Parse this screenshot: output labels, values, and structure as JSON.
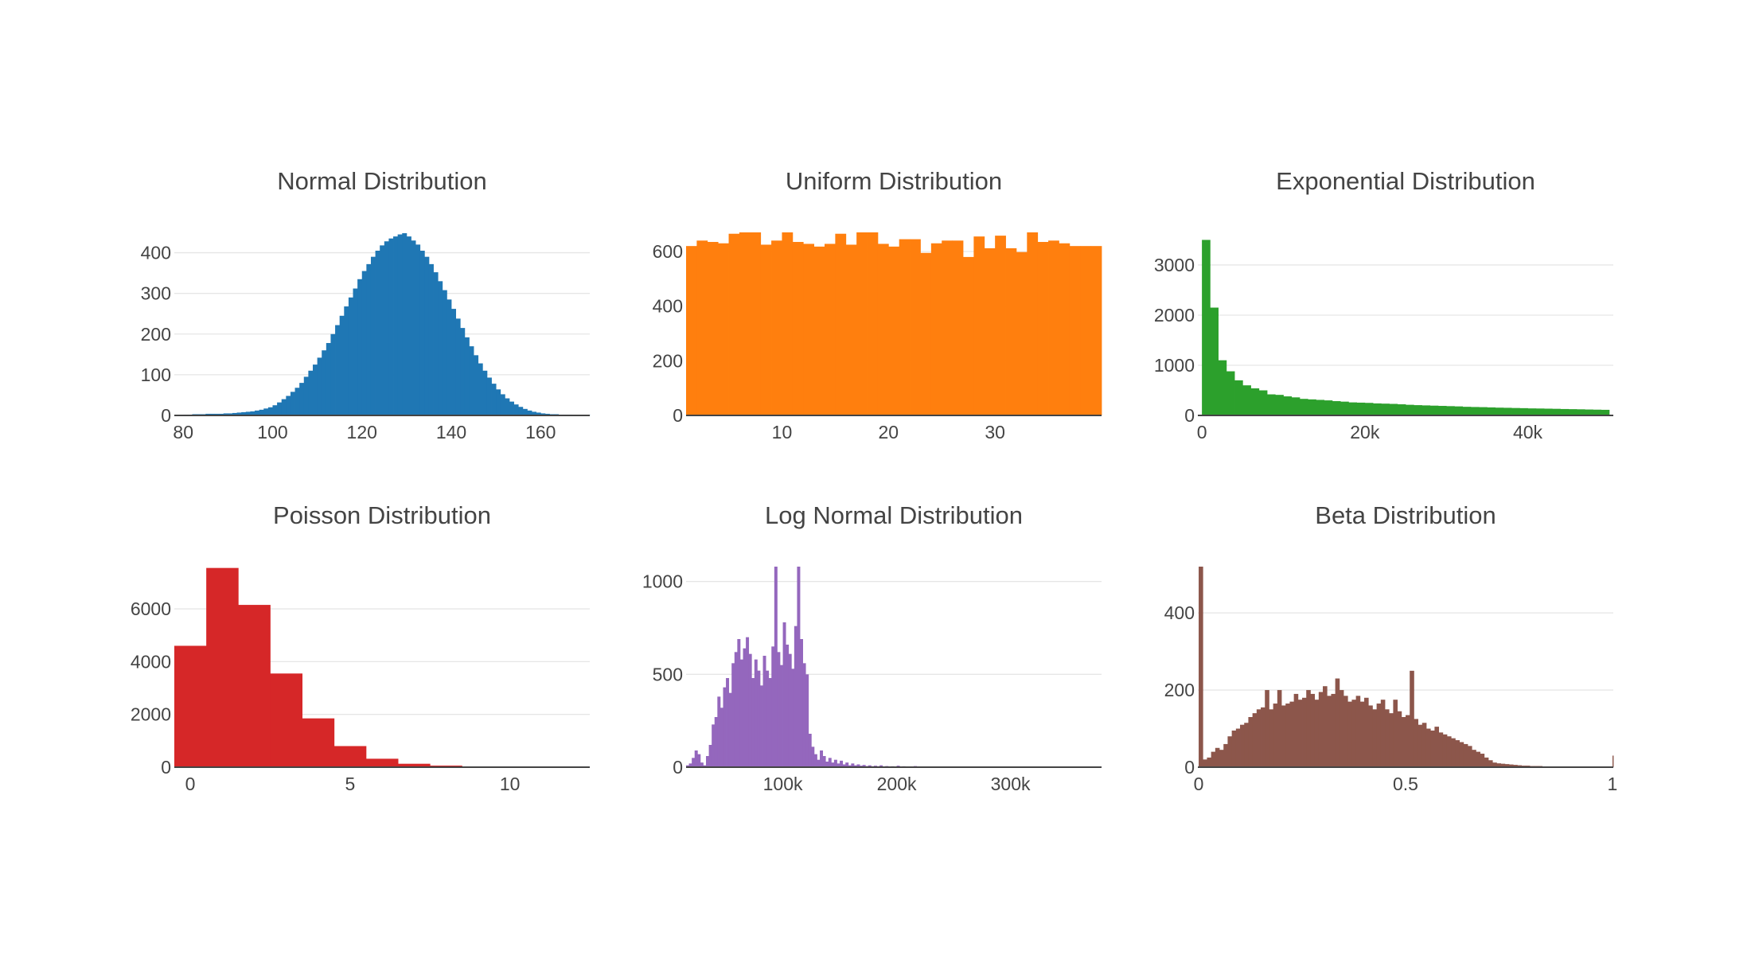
{
  "chart_data": [
    {
      "type": "histogram",
      "title": "Normal Distribution",
      "color": "#1f77b4",
      "xlim": [
        78,
        171
      ],
      "ylim": [
        0,
        450
      ],
      "xticks": [
        {
          "v": 80,
          "label": "80"
        },
        {
          "v": 100,
          "label": "100"
        },
        {
          "v": 120,
          "label": "120"
        },
        {
          "v": 140,
          "label": "140"
        },
        {
          "v": 160,
          "label": "160"
        }
      ],
      "yticks": [
        {
          "v": 0,
          "label": "0"
        },
        {
          "v": 100,
          "label": "100"
        },
        {
          "v": 200,
          "label": "200"
        },
        {
          "v": 300,
          "label": "300"
        },
        {
          "v": 400,
          "label": "400"
        }
      ],
      "bin_start": 80,
      "bin_width": 1,
      "values": [
        2,
        2,
        3,
        3,
        3,
        4,
        4,
        4,
        4,
        5,
        5,
        6,
        7,
        8,
        9,
        10,
        12,
        14,
        17,
        20,
        25,
        32,
        40,
        48,
        58,
        68,
        80,
        95,
        110,
        125,
        142,
        160,
        178,
        200,
        222,
        245,
        268,
        290,
        312,
        335,
        355,
        372,
        390,
        405,
        418,
        428,
        435,
        440,
        445,
        448,
        440,
        430,
        420,
        405,
        390,
        372,
        352,
        330,
        308,
        285,
        262,
        238,
        215,
        192,
        170,
        148,
        128,
        110,
        93,
        78,
        64,
        52,
        42,
        34,
        27,
        21,
        16,
        12,
        9,
        7,
        5,
        4,
        3,
        3,
        2,
        2,
        2,
        1,
        1,
        1,
        1
      ]
    },
    {
      "type": "histogram",
      "title": "Uniform Distribution",
      "color": "#ff7f0e",
      "xlim": [
        1,
        40
      ],
      "ylim": [
        0,
        670
      ],
      "xticks": [
        {
          "v": 10,
          "label": "10"
        },
        {
          "v": 20,
          "label": "20"
        },
        {
          "v": 30,
          "label": "30"
        }
      ],
      "yticks": [
        {
          "v": 0,
          "label": "0"
        },
        {
          "v": 200,
          "label": "200"
        },
        {
          "v": 400,
          "label": "400"
        },
        {
          "v": 600,
          "label": "600"
        }
      ],
      "bin_start": 1,
      "bin_width": 1,
      "values": [
        620,
        640,
        635,
        630,
        665,
        695,
        680,
        625,
        640,
        690,
        635,
        628,
        618,
        628,
        665,
        625,
        695,
        690,
        628,
        618,
        645,
        645,
        595,
        630,
        640,
        640,
        580,
        655,
        612,
        658,
        612,
        598,
        670,
        635,
        640,
        630,
        620,
        620,
        620
      ]
    },
    {
      "type": "histogram",
      "title": "Exponential Distribution",
      "color": "#2ca02c",
      "xlim": [
        -500,
        50500
      ],
      "ylim": [
        0,
        3650
      ],
      "xticks": [
        {
          "v": 0,
          "label": "0"
        },
        {
          "v": 20000,
          "label": "20k"
        },
        {
          "v": 40000,
          "label": "40k"
        }
      ],
      "yticks": [
        {
          "v": 0,
          "label": "0"
        },
        {
          "v": 1000,
          "label": "1000"
        },
        {
          "v": 2000,
          "label": "2000"
        },
        {
          "v": 3000,
          "label": "3000"
        }
      ],
      "bin_start": 0,
      "bin_width": 1000,
      "values": [
        3500,
        2150,
        1100,
        880,
        700,
        600,
        540,
        500,
        420,
        410,
        380,
        360,
        330,
        320,
        310,
        300,
        285,
        275,
        260,
        255,
        250,
        240,
        235,
        230,
        222,
        212,
        205,
        200,
        195,
        190,
        185,
        180,
        172,
        168,
        165,
        160,
        155,
        152,
        148,
        145,
        140,
        138,
        135,
        132,
        128,
        125,
        122,
        118,
        115,
        112
      ]
    },
    {
      "type": "histogram",
      "title": "Poisson Distribution",
      "color": "#d62728",
      "xlim": [
        -0.5,
        12.5
      ],
      "ylim": [
        0,
        7600
      ],
      "xticks": [
        {
          "v": 0,
          "label": "0"
        },
        {
          "v": 5,
          "label": "5"
        },
        {
          "v": 10,
          "label": "10"
        }
      ],
      "yticks": [
        {
          "v": 0,
          "label": "0"
        },
        {
          "v": 2000,
          "label": "2000"
        },
        {
          "v": 4000,
          "label": "4000"
        },
        {
          "v": 6000,
          "label": "6000"
        }
      ],
      "bin_start": -0.5,
      "bin_width": 1,
      "values": [
        4600,
        7550,
        6150,
        3550,
        1850,
        800,
        320,
        130,
        60,
        20,
        8,
        3,
        1
      ]
    },
    {
      "type": "histogram",
      "title": "Log Normal Distribution",
      "color": "#9467bd",
      "xlim": [
        15000,
        380000
      ],
      "ylim": [
        0,
        1080
      ],
      "xticks": [
        {
          "v": 100000,
          "label": "100k"
        },
        {
          "v": 200000,
          "label": "200k"
        },
        {
          "v": 300000,
          "label": "300k"
        }
      ],
      "yticks": [
        {
          "v": 0,
          "label": "0"
        },
        {
          "v": 500,
          "label": "500"
        },
        {
          "v": 1000,
          "label": "1000"
        }
      ],
      "bin_start": 15000,
      "bin_width": 2500,
      "values": [
        10,
        20,
        50,
        90,
        70,
        25,
        10,
        60,
        120,
        230,
        270,
        380,
        320,
        430,
        480,
        400,
        560,
        620,
        690,
        580,
        640,
        700,
        610,
        480,
        580,
        520,
        440,
        600,
        520,
        480,
        650,
        1080,
        620,
        550,
        780,
        660,
        610,
        530,
        760,
        1080,
        690,
        560,
        500,
        180,
        110,
        70,
        40,
        90,
        60,
        30,
        50,
        25,
        40,
        20,
        35,
        15,
        25,
        10,
        20,
        10,
        15,
        8,
        12,
        6,
        10,
        5,
        8,
        5,
        10,
        4,
        6,
        3,
        5,
        3,
        8,
        3,
        5,
        2,
        4,
        2,
        6,
        2,
        3,
        2,
        4,
        2,
        3,
        2,
        4,
        2,
        3,
        1,
        3,
        2,
        2,
        1,
        3,
        2,
        2,
        1,
        3,
        1,
        2,
        1,
        2,
        1,
        2,
        1,
        3,
        1,
        2,
        1,
        2,
        1,
        2,
        1,
        2,
        1,
        2,
        1,
        2,
        1,
        2,
        1,
        2,
        1,
        2,
        1,
        2,
        1,
        2,
        1,
        2,
        1,
        2,
        1,
        2,
        1,
        2,
        1,
        2,
        1,
        2,
        1,
        2,
        1
      ]
    },
    {
      "type": "histogram",
      "title": "Beta Distribution",
      "color": "#8c564b",
      "xlim": [
        -0.002,
        1.002
      ],
      "ylim": [
        0,
        520
      ],
      "xticks": [
        {
          "v": 0,
          "label": "0"
        },
        {
          "v": 0.5,
          "label": "0.5"
        },
        {
          "v": 1,
          "label": "1"
        }
      ],
      "yticks": [
        {
          "v": 0,
          "label": "0"
        },
        {
          "v": 200,
          "label": "200"
        },
        {
          "v": 400,
          "label": "400"
        }
      ],
      "bin_start": 0,
      "bin_width": 0.01,
      "values": [
        520,
        20,
        25,
        40,
        50,
        45,
        60,
        80,
        95,
        100,
        110,
        115,
        130,
        140,
        150,
        155,
        200,
        150,
        165,
        200,
        160,
        165,
        170,
        190,
        175,
        180,
        200,
        190,
        175,
        195,
        210,
        185,
        190,
        230,
        200,
        185,
        170,
        175,
        185,
        170,
        180,
        160,
        150,
        165,
        175,
        150,
        140,
        175,
        145,
        130,
        135,
        250,
        125,
        110,
        115,
        100,
        95,
        105,
        90,
        85,
        80,
        75,
        70,
        65,
        60,
        55,
        45,
        40,
        35,
        25,
        18,
        12,
        10,
        9,
        8,
        7,
        6,
        5,
        4,
        4,
        3,
        3,
        3,
        2,
        2,
        2,
        2,
        2,
        2,
        2,
        2,
        2,
        2,
        2,
        2,
        2,
        2,
        2,
        2,
        2,
        30
      ]
    }
  ]
}
